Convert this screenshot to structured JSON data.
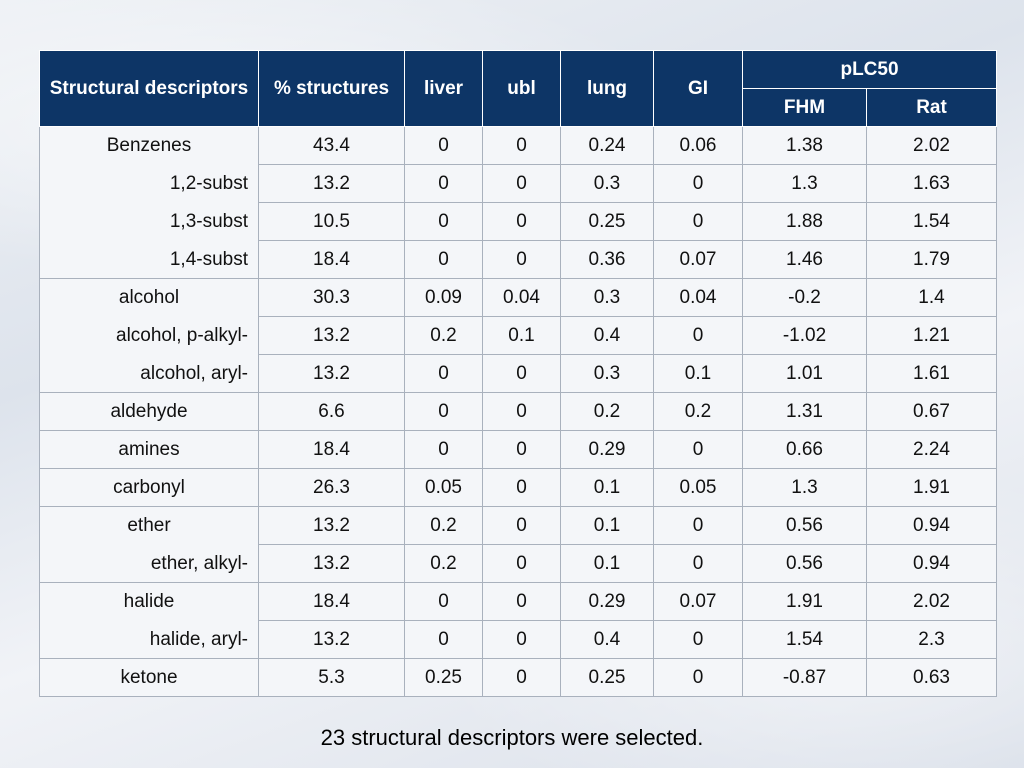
{
  "table": {
    "headers": {
      "descriptor": "Structural descriptors",
      "percent": "% structures",
      "liver": "liver",
      "ubl": "ubl",
      "lung": "lung",
      "gi": "GI",
      "plc50": "pLC50",
      "fhm": "FHM",
      "rat": "Rat"
    },
    "rows": [
      {
        "descriptor": "Benzenes",
        "values": [
          "43.4",
          "0",
          "0",
          "0.24",
          "0.06",
          "1.38",
          "2.02"
        ]
      },
      {
        "descriptor": "1,2-subst",
        "values": [
          "13.2",
          "0",
          "0",
          "0.3",
          "0",
          "1.3",
          "1.63"
        ]
      },
      {
        "descriptor": "1,3-subst",
        "values": [
          "10.5",
          "0",
          "0",
          "0.25",
          "0",
          "1.88",
          "1.54"
        ]
      },
      {
        "descriptor": "1,4-subst",
        "values": [
          "18.4",
          "0",
          "0",
          "0.36",
          "0.07",
          "1.46",
          "1.79"
        ]
      },
      {
        "descriptor": "alcohol",
        "values": [
          "30.3",
          "0.09",
          "0.04",
          "0.3",
          "0.04",
          "-0.2",
          "1.4"
        ]
      },
      {
        "descriptor": "alcohol, p-alkyl-",
        "values": [
          "13.2",
          "0.2",
          "0.1",
          "0.4",
          "0",
          "-1.02",
          "1.21"
        ]
      },
      {
        "descriptor": "alcohol, aryl-",
        "values": [
          "13.2",
          "0",
          "0",
          "0.3",
          "0.1",
          "1.01",
          "1.61"
        ]
      },
      {
        "descriptor": "aldehyde",
        "values": [
          "6.6",
          "0",
          "0",
          "0.2",
          "0.2",
          "1.31",
          "0.67"
        ]
      },
      {
        "descriptor": "amines",
        "values": [
          "18.4",
          "0",
          "0",
          "0.29",
          "0",
          "0.66",
          "2.24"
        ]
      },
      {
        "descriptor": "carbonyl",
        "values": [
          "26.3",
          "0.05",
          "0",
          "0.1",
          "0.05",
          "1.3",
          "1.91"
        ]
      },
      {
        "descriptor": "ether",
        "values": [
          "13.2",
          "0.2",
          "0",
          "0.1",
          "0",
          "0.56",
          "0.94"
        ]
      },
      {
        "descriptor": "ether, alkyl-",
        "values": [
          "13.2",
          "0.2",
          "0",
          "0.1",
          "0",
          "0.56",
          "0.94"
        ]
      },
      {
        "descriptor": "halide",
        "values": [
          "18.4",
          "0",
          "0",
          "0.29",
          "0.07",
          "1.91",
          "2.02"
        ]
      },
      {
        "descriptor": "halide, aryl-",
        "values": [
          "13.2",
          "0",
          "0",
          "0.4",
          "0",
          "1.54",
          "2.3"
        ]
      },
      {
        "descriptor": "ketone",
        "values": [
          "5.3",
          "0.25",
          "0",
          "0.25",
          "0",
          "-0.87",
          "0.63"
        ]
      }
    ]
  },
  "highlight_colors": {
    "green": "#ccffcc",
    "pink": "#ff99cc",
    "header": "#0d3566"
  },
  "caption": "23 structural descriptors were selected."
}
